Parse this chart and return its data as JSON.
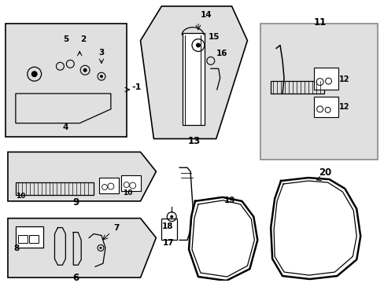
{
  "bg_color": "#ffffff",
  "line_color": "#000000",
  "gray_fill": "#e0e0e0",
  "fig_width": 4.89,
  "fig_height": 3.6,
  "dpi": 100
}
